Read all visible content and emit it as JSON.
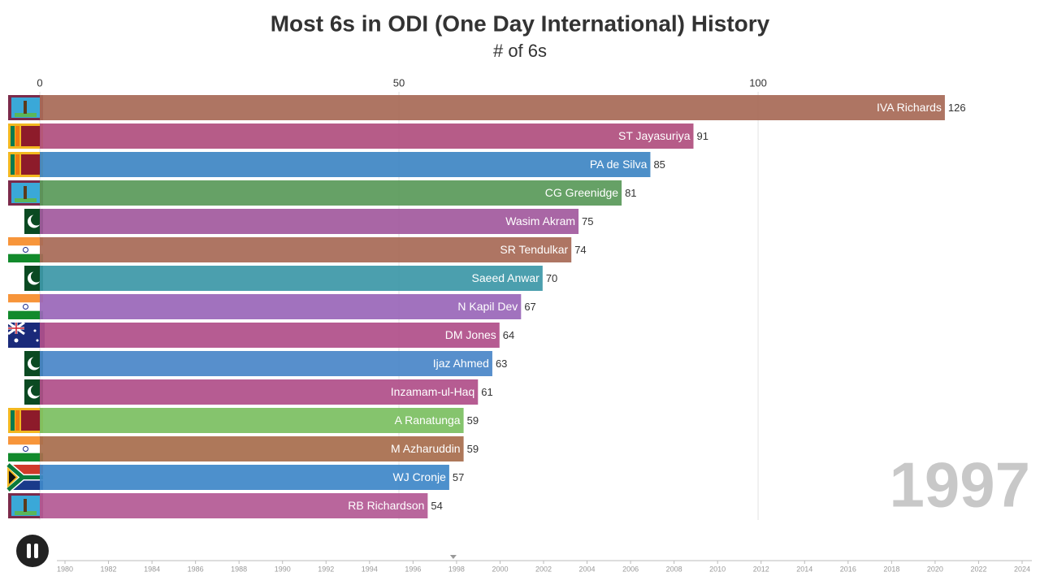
{
  "chart_data": {
    "type": "bar",
    "orientation": "horizontal",
    "title": "Most 6s in ODI (One Day International) History",
    "subtitle": "# of 6s",
    "period": "1997",
    "categories": [
      "IVA Richards",
      "ST Jayasuriya",
      "PA de Silva",
      "CG Greenidge",
      "Wasim Akram",
      "SR Tendulkar",
      "Saeed Anwar",
      "N Kapil Dev",
      "DM Jones",
      "Ijaz Ahmed",
      "Inzamam-ul-Haq",
      "A Ranatunga",
      "M Azharuddin",
      "WJ Cronje",
      "RB Richardson"
    ],
    "values": [
      126,
      91,
      85,
      81,
      75,
      74,
      70,
      67,
      64,
      63,
      61,
      59,
      59,
      57,
      54
    ],
    "colors": [
      "#a86a57",
      "#b0507f",
      "#3f86c4",
      "#5a9a5a",
      "#a25a9e",
      "#a86a57",
      "#3d98a8",
      "#9a67b9",
      "#b0508a",
      "#4a86c8",
      "#b0508a",
      "#7cbf62",
      "#a86e4e",
      "#3f88c8",
      "#b45a94"
    ],
    "xlim": [
      0,
      138
    ],
    "xticks": [
      0,
      50,
      100
    ],
    "grid": true,
    "timeline": {
      "lim": [
        1980,
        2024
      ],
      "ticks": [
        1980,
        1982,
        1984,
        1986,
        1988,
        1990,
        1992,
        1994,
        1996,
        1998,
        2000,
        2002,
        2004,
        2006,
        2008,
        2010,
        2012,
        2014,
        2016,
        2018,
        2020,
        2022,
        2024
      ],
      "position": 1997.85
    }
  }
}
